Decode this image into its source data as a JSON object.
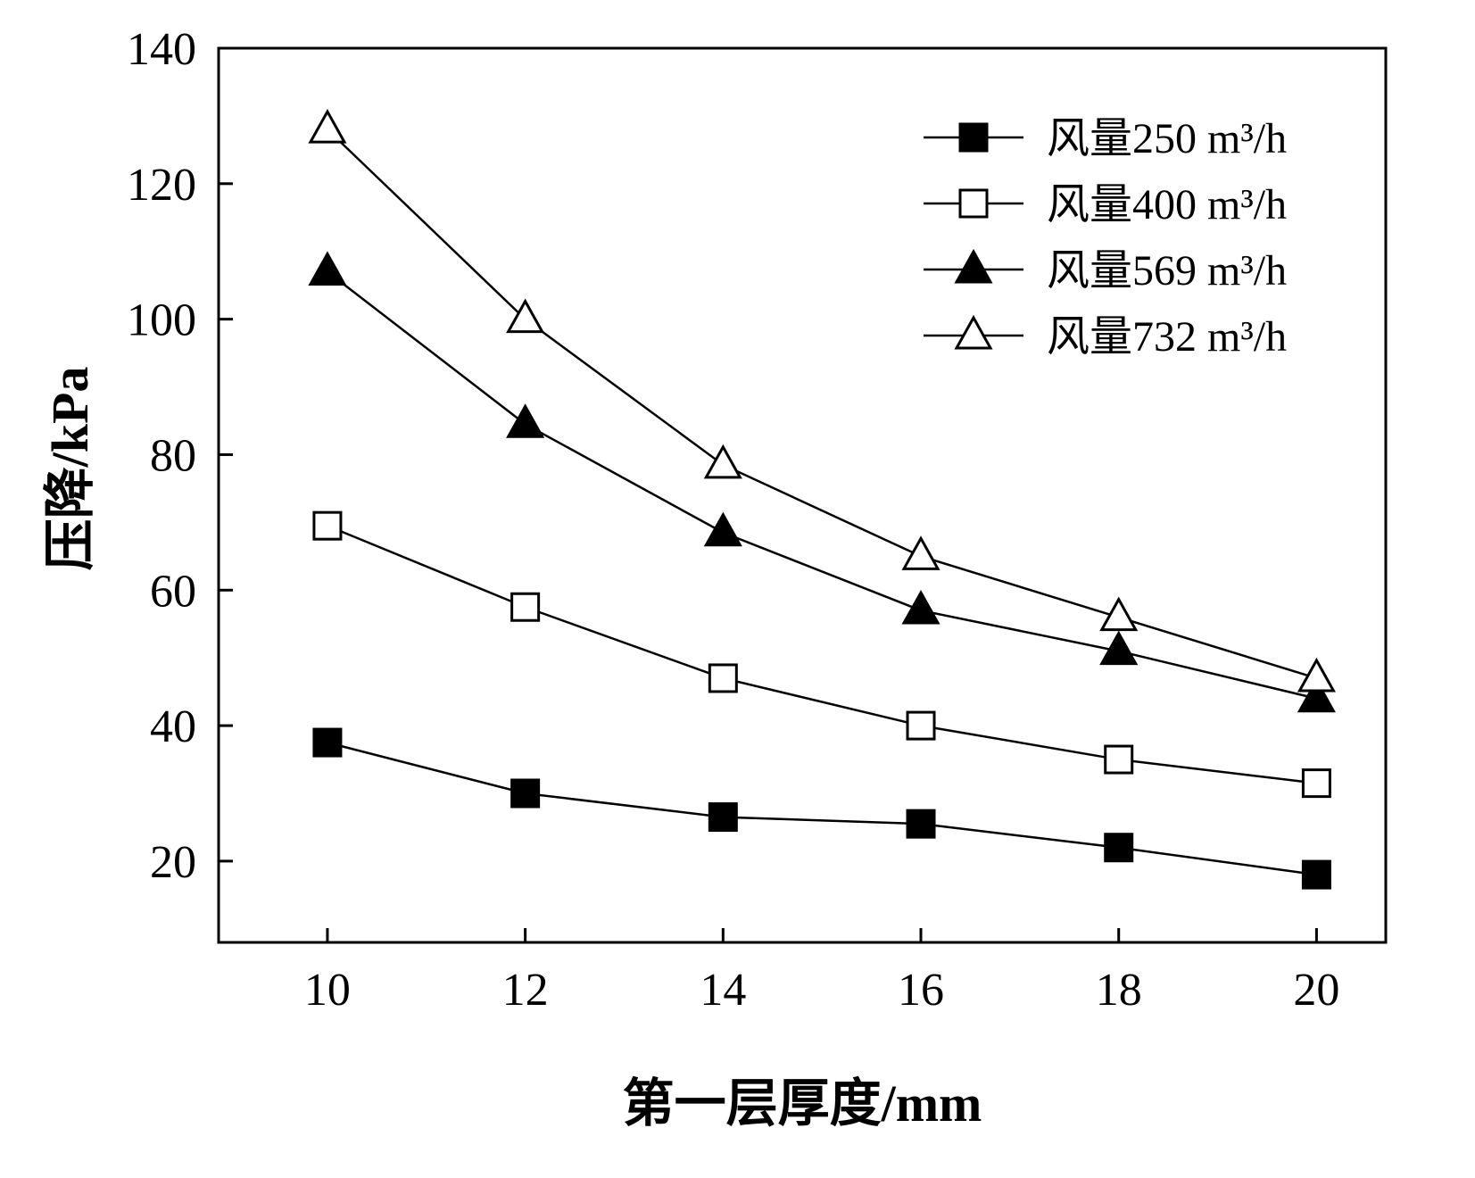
{
  "chart_data": {
    "type": "line",
    "title": "",
    "xlabel": "第一层厚度/mm",
    "ylabel": "压降/kPa",
    "x": [
      10,
      12,
      14,
      16,
      18,
      20
    ],
    "xlim": [
      8.9,
      20.7
    ],
    "ylim": [
      8,
      140
    ],
    "xticks": [
      10,
      12,
      14,
      16,
      18,
      20
    ],
    "yticks": [
      20,
      40,
      60,
      80,
      100,
      120,
      140
    ],
    "grid": false,
    "legend_position": "upper right",
    "series": [
      {
        "name": "风量250 m³/h",
        "marker": "square",
        "fill": "filled",
        "values": [
          37.5,
          30,
          26.5,
          25.5,
          22,
          18
        ]
      },
      {
        "name": "风量400 m³/h",
        "marker": "square",
        "fill": "open",
        "values": [
          69.5,
          57.5,
          47,
          40,
          35,
          31.5
        ]
      },
      {
        "name": "风量569 m³/h",
        "marker": "triangle",
        "fill": "filled",
        "values": [
          107,
          84.5,
          68.5,
          57,
          51,
          44
        ]
      },
      {
        "name": "风量732 m³/h",
        "marker": "triangle",
        "fill": "open",
        "values": [
          128,
          100,
          78.5,
          65,
          56,
          47
        ]
      }
    ],
    "colors": {
      "line": "#000000",
      "background": "#ffffff"
    }
  }
}
